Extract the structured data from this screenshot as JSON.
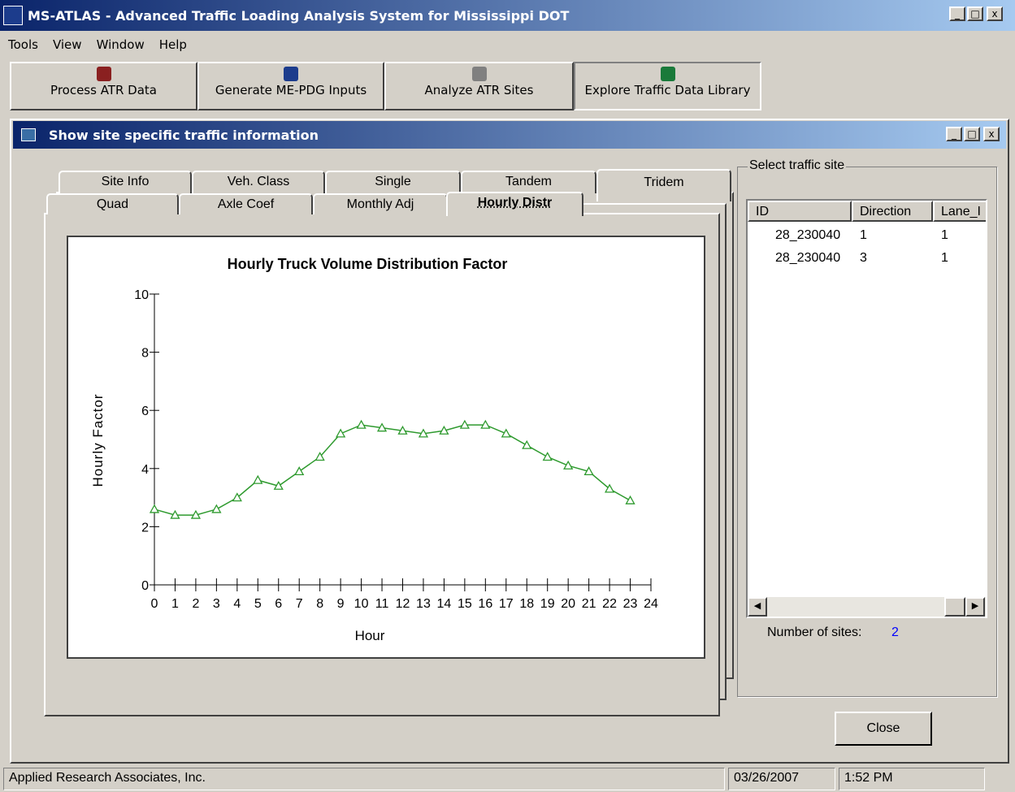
{
  "window": {
    "title": "MS-ATLAS - Advanced Traffic Loading Analysis System for Mississippi DOT"
  },
  "menu": [
    "Tools",
    "View",
    "Window",
    "Help"
  ],
  "toolbar": [
    "Process ATR Data",
    "Generate ME-PDG Inputs",
    "Analyze ATR Sites",
    "Explore Traffic Data Library"
  ],
  "dialog": {
    "title": "Show site specific traffic information"
  },
  "tabs_row1": [
    "Site Info",
    "Veh. Class",
    "Single",
    "Tandem",
    "Tridem"
  ],
  "tabs_row2": [
    "Quad",
    "Axle Coef",
    "Monthly Adj",
    "Hourly Distr"
  ],
  "chart_data": {
    "type": "line",
    "title": "Hourly Truck Volume Distribution Factor",
    "x_label": "Hour",
    "y_label": "Hourly Factor",
    "x": [
      0,
      1,
      2,
      3,
      4,
      5,
      6,
      7,
      8,
      9,
      10,
      11,
      12,
      13,
      14,
      15,
      16,
      17,
      18,
      19,
      20,
      21,
      22,
      23
    ],
    "values": [
      2.6,
      2.4,
      2.4,
      2.6,
      3.0,
      3.6,
      3.4,
      3.9,
      4.4,
      5.2,
      5.5,
      5.4,
      5.3,
      5.2,
      5.3,
      5.5,
      5.5,
      5.2,
      4.8,
      4.4,
      4.1,
      3.9,
      3.3,
      2.9
    ],
    "color": "#2e9a2e",
    "marker": "triangle",
    "xlim": [
      0,
      24
    ],
    "xticks": [
      0,
      1,
      2,
      3,
      4,
      5,
      6,
      7,
      8,
      9,
      10,
      11,
      12,
      13,
      14,
      15,
      16,
      17,
      18,
      19,
      20,
      21,
      22,
      23,
      24
    ],
    "ylim": [
      0,
      10
    ],
    "yticks": [
      0,
      2,
      4,
      6,
      8,
      10
    ]
  },
  "site_panel": {
    "label": "Select traffic site",
    "columns": [
      "ID",
      "Direction",
      "Lane_I"
    ],
    "rows": [
      [
        "28_230040",
        "1",
        "1"
      ],
      [
        "28_230040",
        "3",
        "1"
      ]
    ],
    "count_label": "Number of sites:",
    "count": 2
  },
  "close_button": "Close",
  "status": [
    "Applied Research Associates, Inc.",
    "03/26/2007",
    "1:52 PM"
  ]
}
